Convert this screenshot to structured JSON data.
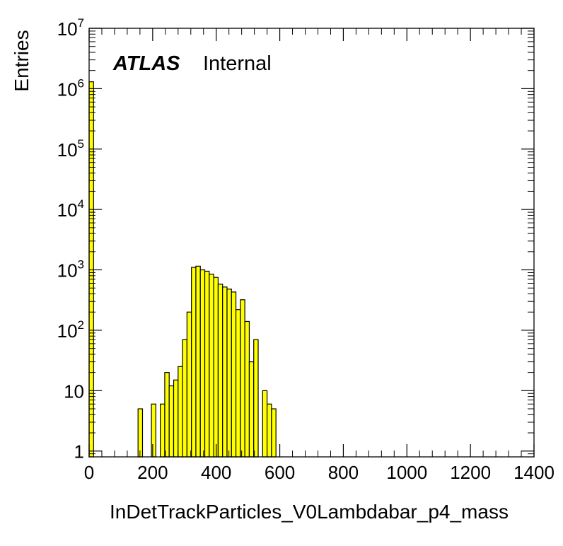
{
  "chart_data": {
    "type": "bar",
    "style": "histogram",
    "xlabel": "InDetTrackParticles_V0Lambdabar_p4_mass",
    "ylabel": "Entries",
    "xlim": [
      0,
      1400
    ],
    "ylim": [
      0.8,
      10000000
    ],
    "yscale": "log",
    "x_ticks": [
      0,
      200,
      400,
      600,
      800,
      1000,
      1200,
      1400
    ],
    "y_ticks": [
      {
        "value": 1,
        "base": "1",
        "exp": ""
      },
      {
        "value": 10,
        "base": "10",
        "exp": ""
      },
      {
        "value": 100,
        "base": "10",
        "exp": "2"
      },
      {
        "value": 1000,
        "base": "10",
        "exp": "3"
      },
      {
        "value": 10000,
        "base": "10",
        "exp": "4"
      },
      {
        "value": 100000,
        "base": "10",
        "exp": "5"
      },
      {
        "value": 1000000,
        "base": "10",
        "exp": "6"
      },
      {
        "value": 10000000,
        "base": "10",
        "exp": "7"
      }
    ],
    "bin_width": 14,
    "fill_color": "#ffff00",
    "line_color": "#000000",
    "bins": [
      {
        "x": 0,
        "y": 1300000
      },
      {
        "x": 154,
        "y": 5
      },
      {
        "x": 196,
        "y": 6
      },
      {
        "x": 224,
        "y": 6
      },
      {
        "x": 238,
        "y": 20
      },
      {
        "x": 252,
        "y": 12
      },
      {
        "x": 266,
        "y": 15
      },
      {
        "x": 280,
        "y": 25
      },
      {
        "x": 294,
        "y": 70
      },
      {
        "x": 308,
        "y": 200
      },
      {
        "x": 322,
        "y": 1100
      },
      {
        "x": 336,
        "y": 1150
      },
      {
        "x": 350,
        "y": 1000
      },
      {
        "x": 364,
        "y": 950
      },
      {
        "x": 378,
        "y": 850
      },
      {
        "x": 392,
        "y": 750
      },
      {
        "x": 406,
        "y": 580
      },
      {
        "x": 420,
        "y": 520
      },
      {
        "x": 434,
        "y": 480
      },
      {
        "x": 448,
        "y": 430
      },
      {
        "x": 462,
        "y": 220
      },
      {
        "x": 476,
        "y": 320
      },
      {
        "x": 490,
        "y": 140
      },
      {
        "x": 504,
        "y": 30
      },
      {
        "x": 518,
        "y": 70
      },
      {
        "x": 546,
        "y": 10
      },
      {
        "x": 560,
        "y": 6
      },
      {
        "x": 574,
        "y": 5
      }
    ]
  },
  "atlas_label": "ATLAS",
  "atlas_status": "Internal"
}
